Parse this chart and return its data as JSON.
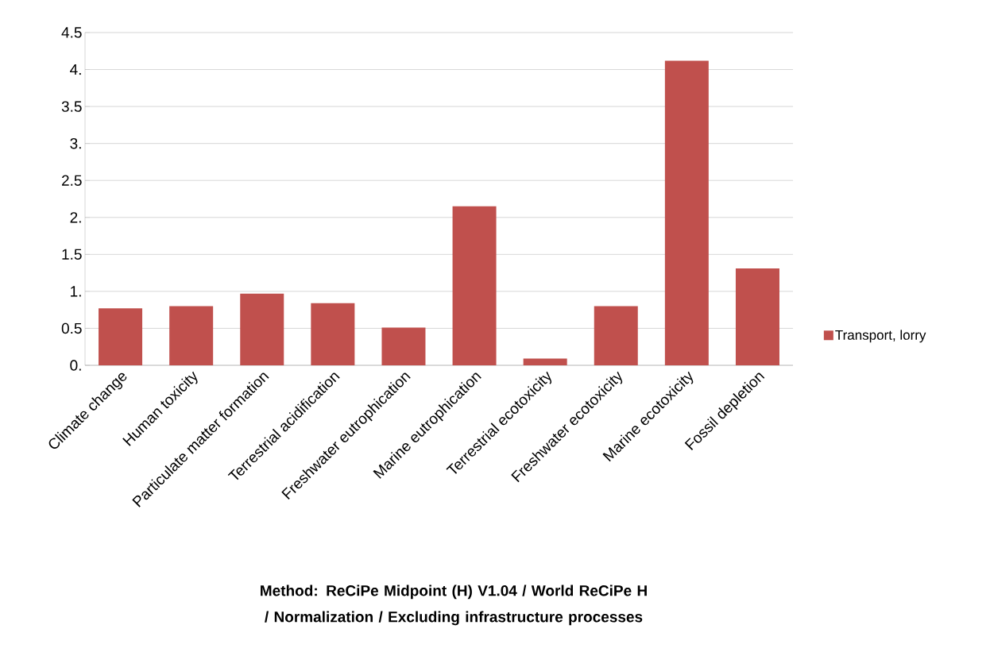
{
  "chart_data": {
    "type": "bar",
    "annotations": [
      "Method: ReCiPe Midpoint (H)  V1.04 / World ReCiPe H / Normalization / Excluding infrastructure processes"
    ],
    "categories": [
      "Climate change",
      "Human toxicity",
      "Particulate matter formation",
      "Terrestrial acidification",
      "Freshwater eutrophication",
      "Marine eutrophication",
      "Terrestrial ecotoxicity",
      "Freshwater ecotoxicity",
      "Marine ecotoxicity",
      "Fossil depletion"
    ],
    "series": [
      {
        "name": "Transport, lorry",
        "color": "#c0504d",
        "values": [
          0.77,
          0.8,
          0.97,
          0.84,
          0.51,
          2.15,
          0.09,
          0.8,
          4.12,
          1.31
        ]
      }
    ],
    "ylim": [
      0,
      4.5
    ],
    "yticks": [
      {
        "value": 0,
        "label": "0."
      },
      0.5,
      {
        "value": 1,
        "label": "1."
      },
      1.5,
      {
        "value": 2,
        "label": "2."
      },
      2.5,
      {
        "value": 3,
        "label": "3."
      },
      3.5,
      {
        "value": 4,
        "label": "4."
      },
      4.5
    ],
    "grid": "y",
    "legend": "right"
  }
}
